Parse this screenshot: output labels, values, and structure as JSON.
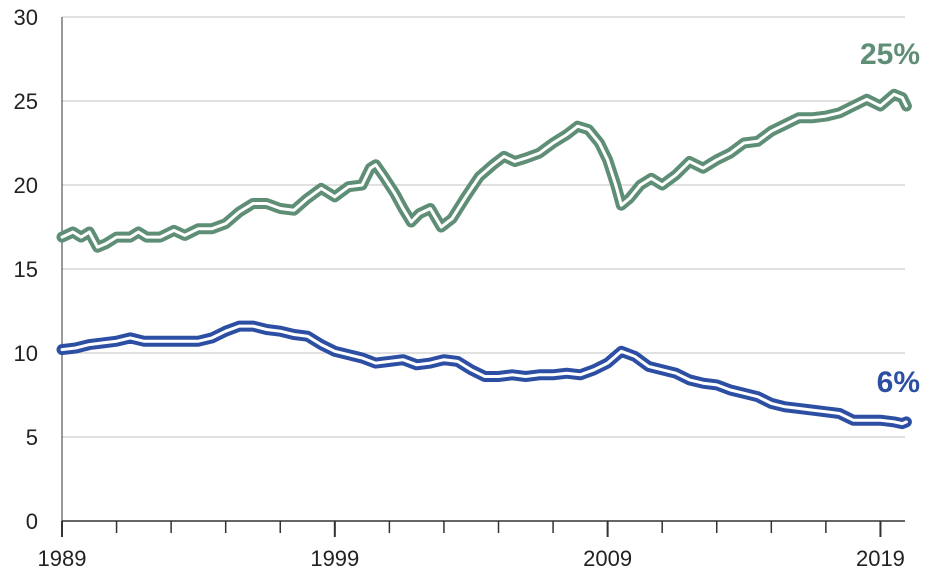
{
  "chart_data": {
    "type": "line",
    "title": "",
    "xlabel": "",
    "ylabel": "",
    "xlim": [
      1989,
      2019.9
    ],
    "ylim": [
      0,
      30
    ],
    "x_ticks": [
      "1989",
      "1999",
      "2009",
      "2019"
    ],
    "y_ticks": [
      "0",
      "5",
      "10",
      "15",
      "20",
      "25",
      "30"
    ],
    "grid": true,
    "series": [
      {
        "color": "#5f8e76",
        "end_label": "25%",
        "points": [
          [
            1989.0,
            16.9
          ],
          [
            1989.4,
            17.2
          ],
          [
            1989.7,
            16.9
          ],
          [
            1990.0,
            17.2
          ],
          [
            1990.3,
            16.3
          ],
          [
            1990.6,
            16.5
          ],
          [
            1991.0,
            16.9
          ],
          [
            1991.5,
            16.9
          ],
          [
            1991.8,
            17.2
          ],
          [
            1992.1,
            16.9
          ],
          [
            1992.6,
            16.9
          ],
          [
            1993.1,
            17.3
          ],
          [
            1993.5,
            17.0
          ],
          [
            1994.0,
            17.4
          ],
          [
            1994.5,
            17.4
          ],
          [
            1995.0,
            17.7
          ],
          [
            1995.5,
            18.4
          ],
          [
            1996.0,
            18.9
          ],
          [
            1996.5,
            18.9
          ],
          [
            1997.0,
            18.6
          ],
          [
            1997.5,
            18.5
          ],
          [
            1998.0,
            19.2
          ],
          [
            1998.5,
            19.8
          ],
          [
            1999.0,
            19.3
          ],
          [
            1999.5,
            19.9
          ],
          [
            2000.0,
            20.0
          ],
          [
            2000.3,
            21.0
          ],
          [
            2000.5,
            21.2
          ],
          [
            2000.8,
            20.5
          ],
          [
            2001.2,
            19.5
          ],
          [
            2001.5,
            18.6
          ],
          [
            2001.8,
            17.8
          ],
          [
            2002.1,
            18.3
          ],
          [
            2002.5,
            18.6
          ],
          [
            2002.9,
            17.5
          ],
          [
            2003.3,
            18.0
          ],
          [
            2003.8,
            19.3
          ],
          [
            2004.3,
            20.5
          ],
          [
            2004.8,
            21.2
          ],
          [
            2005.2,
            21.7
          ],
          [
            2005.6,
            21.4
          ],
          [
            2006.0,
            21.6
          ],
          [
            2006.5,
            21.9
          ],
          [
            2007.0,
            22.5
          ],
          [
            2007.5,
            23.0
          ],
          [
            2007.9,
            23.5
          ],
          [
            2008.3,
            23.3
          ],
          [
            2008.7,
            22.5
          ],
          [
            2009.0,
            21.5
          ],
          [
            2009.3,
            20.0
          ],
          [
            2009.5,
            18.8
          ],
          [
            2009.8,
            19.2
          ],
          [
            2010.2,
            20.0
          ],
          [
            2010.6,
            20.4
          ],
          [
            2011.0,
            20.0
          ],
          [
            2011.5,
            20.6
          ],
          [
            2012.0,
            21.4
          ],
          [
            2012.5,
            21.0
          ],
          [
            2013.0,
            21.5
          ],
          [
            2013.5,
            21.9
          ],
          [
            2014.0,
            22.5
          ],
          [
            2014.5,
            22.6
          ],
          [
            2015.0,
            23.2
          ],
          [
            2015.5,
            23.6
          ],
          [
            2016.0,
            24.0
          ],
          [
            2016.5,
            24.0
          ],
          [
            2017.0,
            24.1
          ],
          [
            2017.5,
            24.3
          ],
          [
            2018.0,
            24.7
          ],
          [
            2018.5,
            25.1
          ],
          [
            2019.0,
            24.7
          ],
          [
            2019.5,
            25.4
          ],
          [
            2019.8,
            25.2
          ],
          [
            2019.95,
            24.7
          ]
        ]
      },
      {
        "color": "#2c4fa3",
        "end_label": "6%",
        "points": [
          [
            1989.0,
            10.2
          ],
          [
            1989.5,
            10.3
          ],
          [
            1990.0,
            10.5
          ],
          [
            1990.5,
            10.6
          ],
          [
            1991.0,
            10.7
          ],
          [
            1991.5,
            10.9
          ],
          [
            1992.0,
            10.7
          ],
          [
            1993.0,
            10.7
          ],
          [
            1994.0,
            10.7
          ],
          [
            1994.5,
            10.9
          ],
          [
            1995.0,
            11.3
          ],
          [
            1995.5,
            11.6
          ],
          [
            1996.0,
            11.6
          ],
          [
            1996.5,
            11.4
          ],
          [
            1997.0,
            11.3
          ],
          [
            1997.5,
            11.1
          ],
          [
            1998.0,
            11.0
          ],
          [
            1998.5,
            10.5
          ],
          [
            1999.0,
            10.1
          ],
          [
            1999.5,
            9.9
          ],
          [
            2000.0,
            9.7
          ],
          [
            2000.5,
            9.4
          ],
          [
            2001.0,
            9.5
          ],
          [
            2001.5,
            9.6
          ],
          [
            2002.0,
            9.3
          ],
          [
            2002.5,
            9.4
          ],
          [
            2003.0,
            9.6
          ],
          [
            2003.5,
            9.5
          ],
          [
            2004.0,
            9.0
          ],
          [
            2004.5,
            8.6
          ],
          [
            2005.0,
            8.6
          ],
          [
            2005.5,
            8.7
          ],
          [
            2006.0,
            8.6
          ],
          [
            2006.5,
            8.7
          ],
          [
            2007.0,
            8.7
          ],
          [
            2007.5,
            8.8
          ],
          [
            2008.0,
            8.7
          ],
          [
            2008.5,
            9.0
          ],
          [
            2009.0,
            9.4
          ],
          [
            2009.5,
            10.1
          ],
          [
            2010.0,
            9.8
          ],
          [
            2010.5,
            9.2
          ],
          [
            2011.0,
            9.0
          ],
          [
            2011.5,
            8.8
          ],
          [
            2012.0,
            8.4
          ],
          [
            2012.5,
            8.2
          ],
          [
            2013.0,
            8.1
          ],
          [
            2013.5,
            7.8
          ],
          [
            2014.0,
            7.6
          ],
          [
            2014.5,
            7.4
          ],
          [
            2015.0,
            7.0
          ],
          [
            2015.5,
            6.8
          ],
          [
            2016.0,
            6.7
          ],
          [
            2016.5,
            6.6
          ],
          [
            2017.0,
            6.5
          ],
          [
            2017.5,
            6.4
          ],
          [
            2018.0,
            6.0
          ],
          [
            2018.5,
            6.0
          ],
          [
            2019.0,
            6.0
          ],
          [
            2019.5,
            5.9
          ],
          [
            2019.8,
            5.8
          ],
          [
            2019.95,
            5.9
          ]
        ]
      }
    ]
  }
}
